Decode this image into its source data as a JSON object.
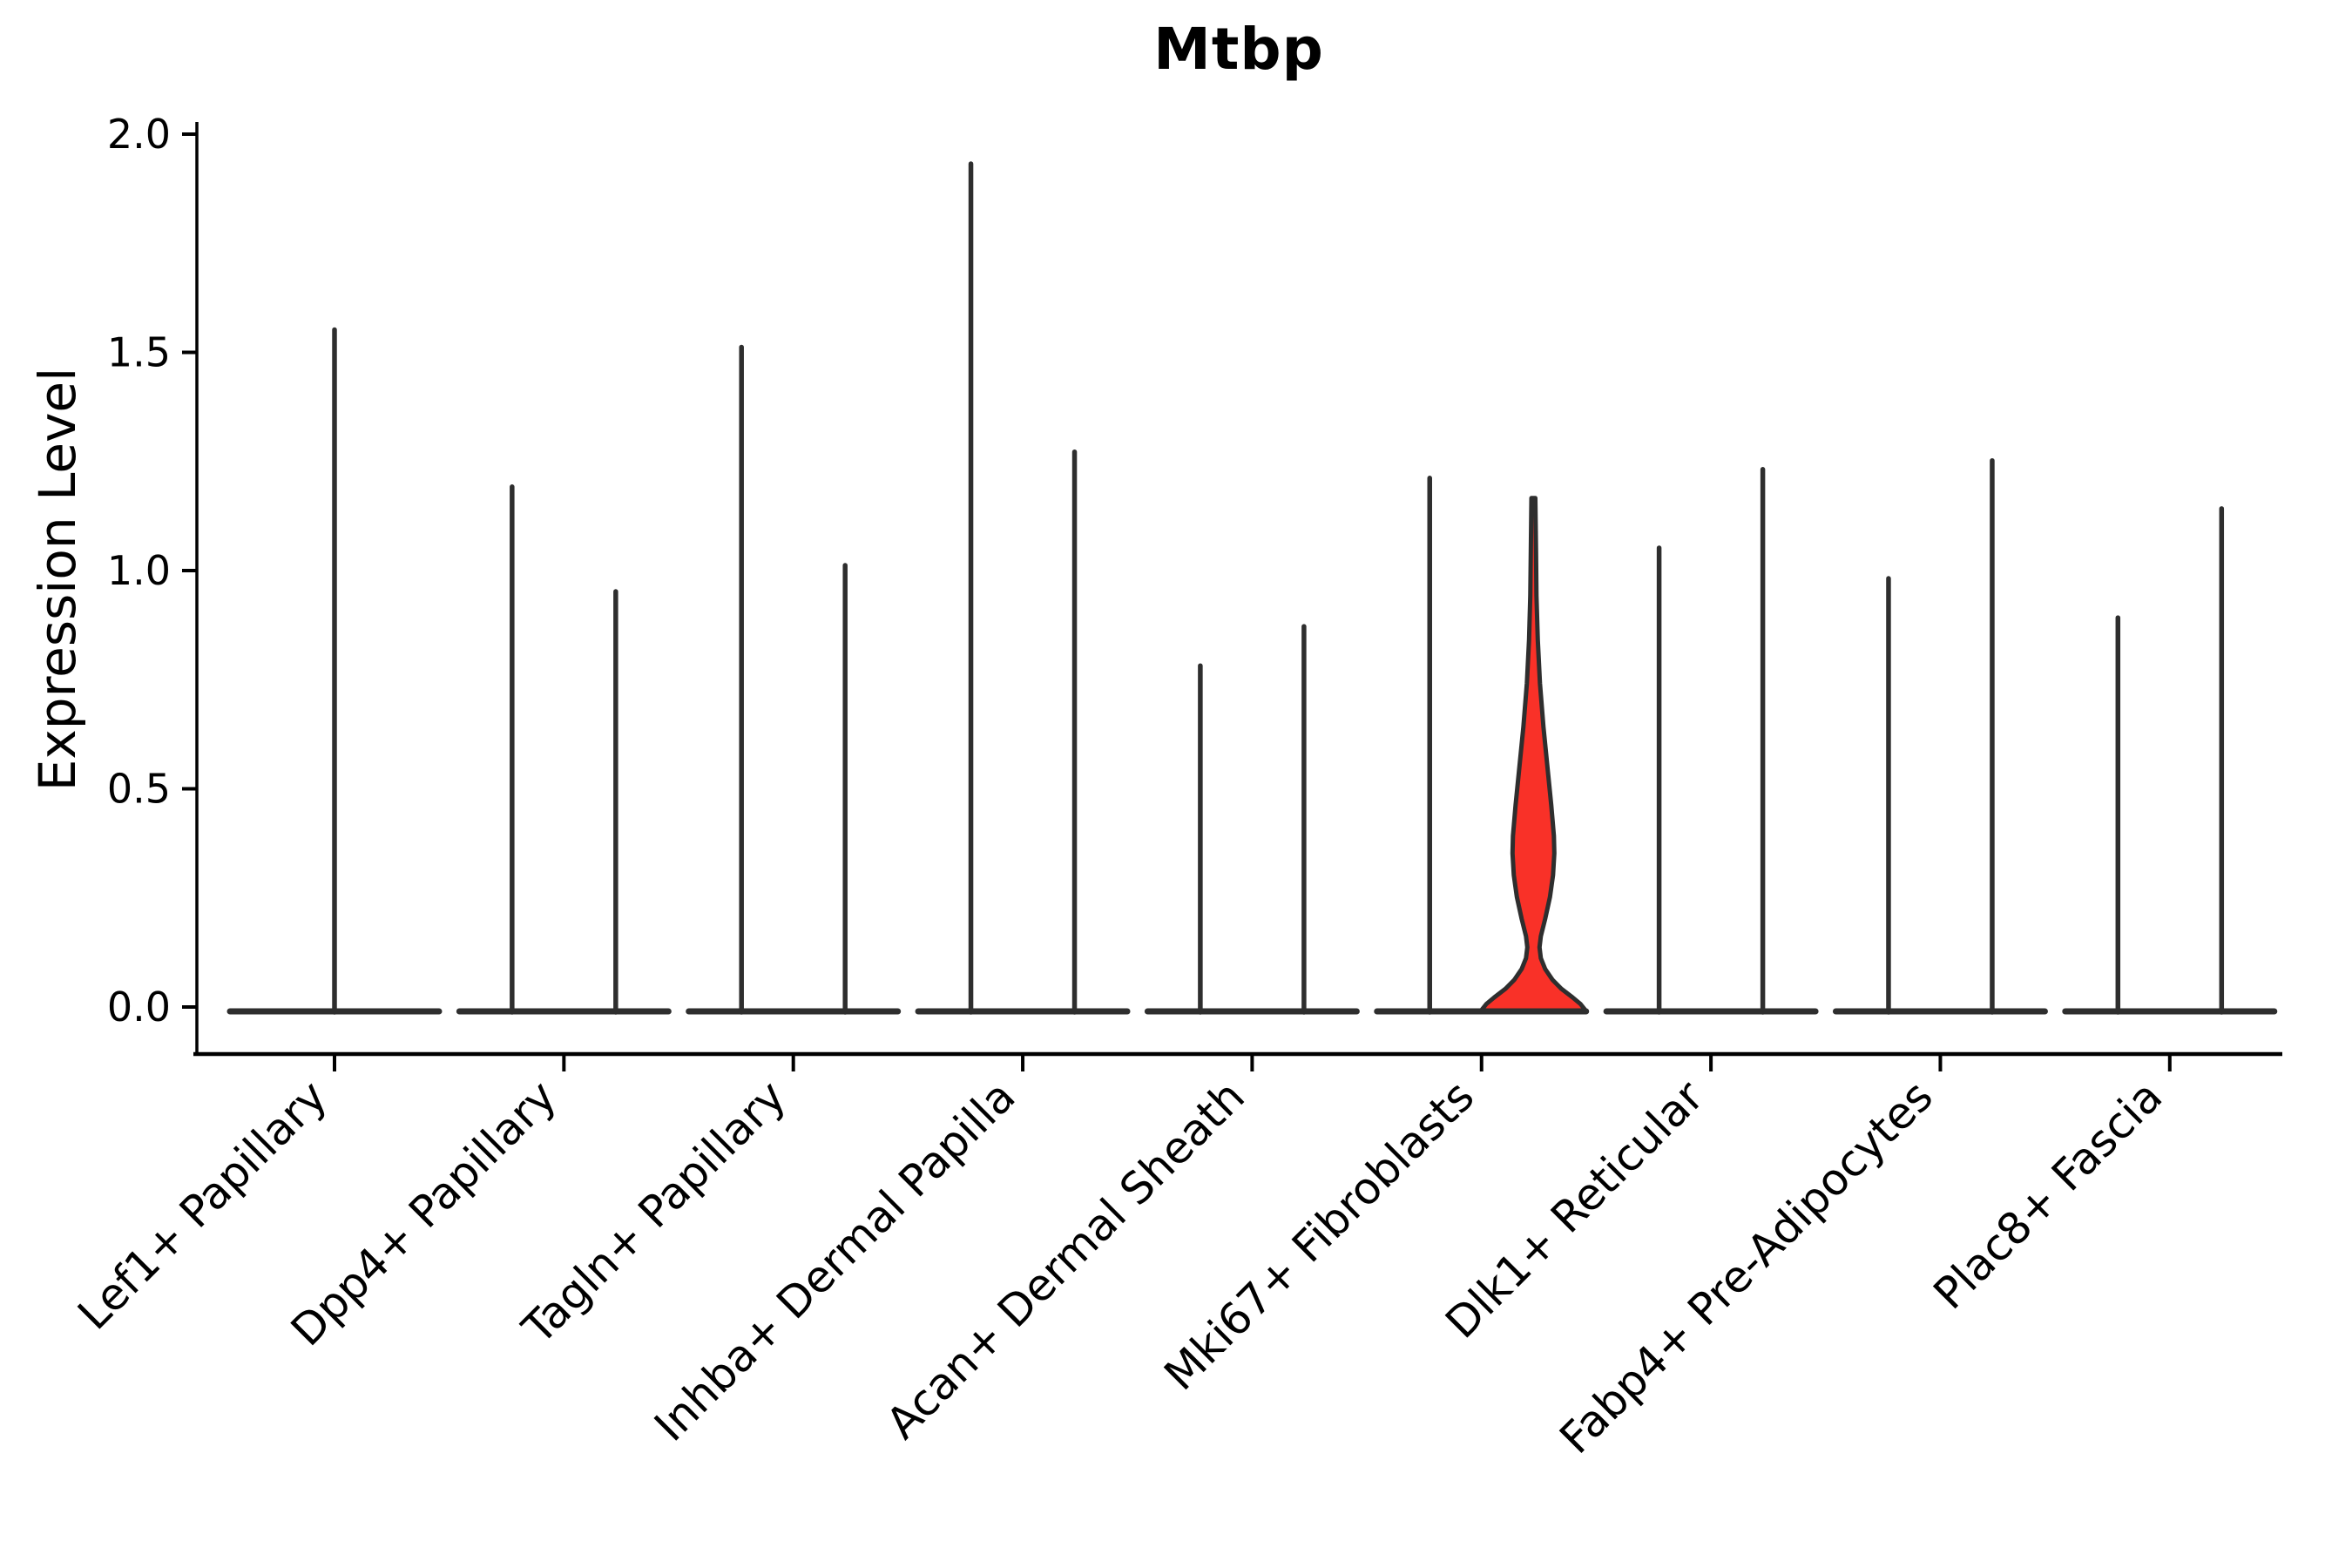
{
  "chart_data": {
    "type": "violin",
    "title": "Mtbp",
    "ylabel": "Expression Level",
    "ylim": [
      0.0,
      2.0
    ],
    "yticks": [
      "0.0",
      "0.5",
      "1.0",
      "1.5",
      "2.0"
    ],
    "ytick_values": [
      0.0,
      0.5,
      1.0,
      1.5,
      2.0
    ],
    "grid": false,
    "legend": "none",
    "categories": [
      "Lef1+ Papillary",
      "Dpp4+ Papillary",
      "Tagln+ Papillary",
      "Inhba+ Dermal Papilla",
      "Acan+ Dermal Sheath",
      "Mki67+ Fibroblasts",
      "Dlk1+ Reticular",
      "Fabp4+ Pre-Adipocytes",
      "Plac8+ Fascia"
    ],
    "groups": [
      {
        "category": "Lef1+ Papillary",
        "violins": [
          {
            "position": "center",
            "max": 1.56,
            "highlighted": false
          }
        ]
      },
      {
        "category": "Dpp4+ Papillary",
        "violins": [
          {
            "position": "left",
            "max": 1.2,
            "highlighted": false
          },
          {
            "position": "right",
            "max": 0.96,
            "highlighted": false
          }
        ]
      },
      {
        "category": "Tagln+ Papillary",
        "violins": [
          {
            "position": "left",
            "max": 1.52,
            "highlighted": false
          },
          {
            "position": "right",
            "max": 1.02,
            "highlighted": false
          }
        ]
      },
      {
        "category": "Inhba+ Dermal Papilla",
        "violins": [
          {
            "position": "left",
            "max": 1.94,
            "highlighted": false
          },
          {
            "position": "right",
            "max": 1.28,
            "highlighted": false
          }
        ]
      },
      {
        "category": "Acan+ Dermal Sheath",
        "violins": [
          {
            "position": "left",
            "max": 0.79,
            "highlighted": false
          },
          {
            "position": "right",
            "max": 0.88,
            "highlighted": false
          }
        ]
      },
      {
        "category": "Mki67+ Fibroblasts",
        "violins": [
          {
            "position": "left",
            "max": 1.22,
            "highlighted": false
          },
          {
            "position": "right",
            "max": 1.17,
            "highlighted": true
          }
        ]
      },
      {
        "category": "Dlk1+ Reticular",
        "violins": [
          {
            "position": "left",
            "max": 1.06,
            "highlighted": false
          },
          {
            "position": "right",
            "max": 1.24,
            "highlighted": false
          }
        ]
      },
      {
        "category": "Fabp4+ Pre-Adipocytes",
        "violins": [
          {
            "position": "left",
            "max": 0.99,
            "highlighted": false
          },
          {
            "position": "right",
            "max": 1.26,
            "highlighted": false
          }
        ]
      },
      {
        "category": "Plac8+ Fascia",
        "violins": [
          {
            "position": "left",
            "max": 0.9,
            "highlighted": false
          },
          {
            "position": "right",
            "max": 1.15,
            "highlighted": false
          }
        ]
      }
    ],
    "highlighted_violin_profile": [
      [
        1.174,
        2.2
      ],
      [
        1.05,
        3.0
      ],
      [
        0.95,
        3.6
      ],
      [
        0.85,
        5.0
      ],
      [
        0.75,
        7.5
      ],
      [
        0.65,
        11.5
      ],
      [
        0.55,
        16.5
      ],
      [
        0.47,
        20.5
      ],
      [
        0.4,
        23.5
      ],
      [
        0.36,
        24.0
      ],
      [
        0.31,
        22.5
      ],
      [
        0.26,
        19.0
      ],
      [
        0.21,
        13.5
      ],
      [
        0.17,
        8.5
      ],
      [
        0.145,
        7.0
      ],
      [
        0.12,
        8.5
      ],
      [
        0.095,
        13.5
      ],
      [
        0.07,
        22.0
      ],
      [
        0.05,
        32.0
      ],
      [
        0.03,
        45.0
      ],
      [
        0.015,
        54.0
      ],
      [
        0.0,
        60.0
      ]
    ],
    "colors": {
      "violin_line": "#2e2e2e",
      "highlight_fill": "#f93128",
      "axis": "#000000",
      "text": "#000000",
      "background": "#ffffff"
    }
  }
}
